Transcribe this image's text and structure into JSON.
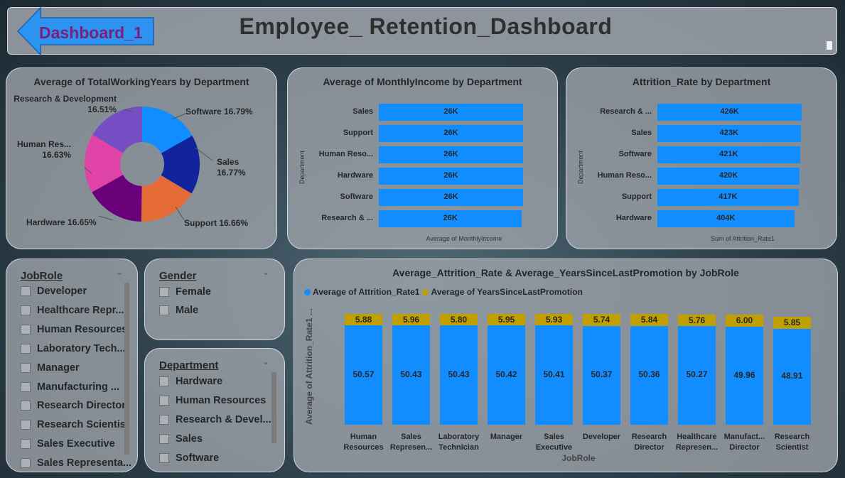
{
  "header": {
    "title": "Employee_ Retention_Dashboard",
    "back_label": "Dashboard_1"
  },
  "colors": {
    "accent_blue": "#118dff",
    "accent_gold": "#c0a000",
    "back_button": "#2c94f0",
    "back_text": "#7a1f7a"
  },
  "donut": {
    "title": "Average of TotalWorkingYears by Department",
    "labels": {
      "research": [
        "Research & Development",
        "16.51%"
      ],
      "software": "Software 16.79%",
      "sales": [
        "Sales",
        "16.77%"
      ],
      "support": "Support 16.66%",
      "hardware": "Hardware 16.65%",
      "hr": [
        "Human Res...",
        "16.63%"
      ]
    },
    "chart_data": {
      "type": "pie",
      "categories": [
        "Software",
        "Sales",
        "Support",
        "Hardware",
        "Human Res...",
        "Research & Development"
      ],
      "values": [
        16.79,
        16.77,
        16.66,
        16.65,
        16.63,
        16.51
      ],
      "colors": [
        "#118dff",
        "#12239e",
        "#e66c37",
        "#6b007b",
        "#e044a7",
        "#744ec2"
      ]
    }
  },
  "income": {
    "title": "Average of MonthlyIncome by Department",
    "ylabel": "Department",
    "xlabel": "Average of MonthlyIncome",
    "rows": [
      {
        "cat": "Sales",
        "label": "26K"
      },
      {
        "cat": "Support",
        "label": "26K"
      },
      {
        "cat": "Human Reso...",
        "label": "26K"
      },
      {
        "cat": "Hardware",
        "label": "26K"
      },
      {
        "cat": "Software",
        "label": "26K"
      },
      {
        "cat": "Research & ...",
        "label": "26K"
      }
    ],
    "chart_data": {
      "type": "bar",
      "categories": [
        "Sales",
        "Support",
        "Human Reso...",
        "Hardware",
        "Software",
        "Research & ..."
      ],
      "values": [
        26,
        26,
        26,
        26,
        26,
        25.8
      ],
      "unit": "K"
    }
  },
  "attrition": {
    "title": "Attrition_Rate by Department",
    "ylabel": "Department",
    "xlabel": "Sum of Attrition_Rate1",
    "rows": [
      {
        "cat": "Research & ...",
        "label": "426K"
      },
      {
        "cat": "Sales",
        "label": "423K"
      },
      {
        "cat": "Software",
        "label": "421K"
      },
      {
        "cat": "Human Reso...",
        "label": "420K"
      },
      {
        "cat": "Support",
        "label": "417K"
      },
      {
        "cat": "Hardware",
        "label": "404K"
      }
    ],
    "chart_data": {
      "type": "bar",
      "categories": [
        "Research & ...",
        "Sales",
        "Software",
        "Human Reso...",
        "Support",
        "Hardware"
      ],
      "values": [
        426,
        423,
        421,
        420,
        417,
        404
      ],
      "unit": "K"
    }
  },
  "jobrole_slicer": {
    "title": "JobRole",
    "options": [
      "Developer",
      "Healthcare Repr...",
      "Human Resources",
      "Laboratory Tech...",
      "Manager",
      "Manufacturing ...",
      "Research Director",
      "Research Scientist",
      "Sales Executive",
      "Sales Representa..."
    ]
  },
  "gender_slicer": {
    "title": "Gender",
    "options": [
      "Female",
      "Male"
    ]
  },
  "department_slicer": {
    "title": "Department",
    "options": [
      "Hardware",
      "Human Resources",
      "Research & Devel...",
      "Sales",
      "Software"
    ]
  },
  "combo": {
    "title": "Average_Attrition_Rate & Average_YearsSinceLastPromotion by JobRole",
    "legend": [
      "Average of Attrition_Rate1",
      "Average of YearsSinceLastPromotion"
    ],
    "ylabel": "Average of Attrition_Rate1 ...",
    "xlabel": "JobRole",
    "chart_data": {
      "type": "bar",
      "stacked": true,
      "categories": [
        [
          "Human",
          "Resources"
        ],
        [
          "Sales",
          "Represen..."
        ],
        [
          "Laboratory",
          "Technician"
        ],
        [
          "Manager"
        ],
        [
          "Sales",
          "Executive"
        ],
        [
          "Developer"
        ],
        [
          "Research",
          "Director"
        ],
        [
          "Healthcare",
          "Represen..."
        ],
        [
          "Manufact...",
          "Director"
        ],
        [
          "Research",
          "Scientist"
        ]
      ],
      "series": [
        {
          "name": "Average of Attrition_Rate1",
          "values": [
            50.57,
            50.43,
            50.43,
            50.42,
            50.41,
            50.37,
            50.36,
            50.27,
            49.96,
            48.91
          ]
        },
        {
          "name": "Average of YearsSinceLastPromotion",
          "values": [
            5.88,
            5.96,
            5.8,
            5.95,
            5.93,
            5.74,
            5.84,
            5.76,
            6.0,
            5.85
          ]
        }
      ]
    }
  }
}
